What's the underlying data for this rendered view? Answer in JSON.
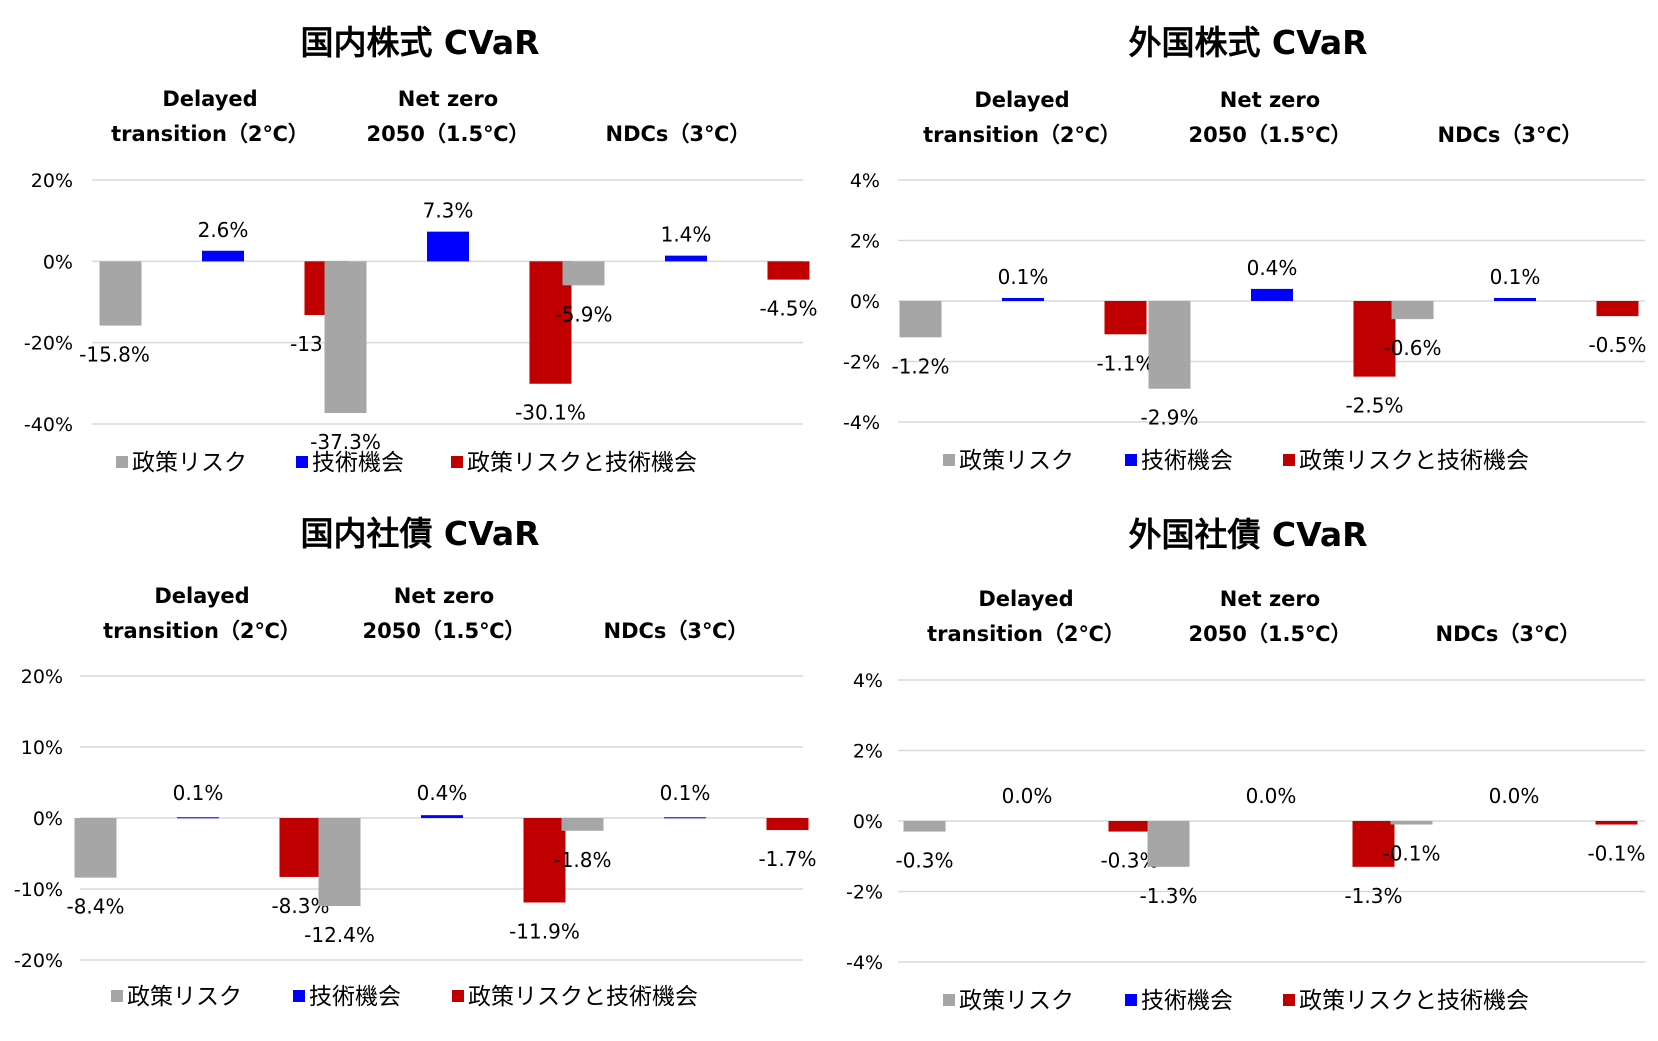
{
  "chart_data": [
    {
      "type": "bar",
      "title": "国内株式 CVaR",
      "categories": [
        [
          "Delayed",
          "transition（2℃）"
        ],
        [
          "Net zero",
          "2050（1.5℃）"
        ],
        [
          "NDCs（3℃）"
        ]
      ],
      "series": [
        {
          "name": "政策リスク",
          "color": "#a6a6a6",
          "values": [
            -15.8,
            -37.3,
            -5.9
          ],
          "labels": [
            "-15.8%",
            "-37.3%",
            "-5.9%"
          ]
        },
        {
          "name": "技術機会",
          "color": "#0000ff",
          "values": [
            2.6,
            7.3,
            1.4
          ],
          "labels": [
            "2.6%",
            "7.3%",
            "1.4%"
          ]
        },
        {
          "name": "政策リスクと技術機会",
          "color": "#c00000",
          "values": [
            -13.2,
            -30.1,
            -4.5
          ],
          "labels": [
            "-13.2%",
            "-30.1%",
            "-4.5%"
          ]
        }
      ],
      "ylim": [
        -40,
        20
      ],
      "yticks": [
        20,
        0,
        -20,
        -40
      ],
      "ytick_labels": [
        "20%",
        "0%",
        "-20%",
        "-40%"
      ],
      "legend_position": "bottom",
      "grid": true
    },
    {
      "type": "bar",
      "title": "外国株式 CVaR",
      "categories": [
        [
          "Delayed",
          "transition（2℃）"
        ],
        [
          "Net zero",
          "2050（1.5℃）"
        ],
        [
          "NDCs（3℃）"
        ]
      ],
      "series": [
        {
          "name": "政策リスク",
          "color": "#a6a6a6",
          "values": [
            -1.2,
            -2.9,
            -0.6
          ],
          "labels": [
            "-1.2%",
            "-2.9%",
            "-0.6%"
          ]
        },
        {
          "name": "技術機会",
          "color": "#0000ff",
          "values": [
            0.1,
            0.4,
            0.1
          ],
          "labels": [
            "0.1%",
            "0.4%",
            "0.1%"
          ]
        },
        {
          "name": "政策リスクと技術機会",
          "color": "#c00000",
          "values": [
            -1.1,
            -2.5,
            -0.5
          ],
          "labels": [
            "-1.1%",
            "-2.5%",
            "-0.5%"
          ]
        }
      ],
      "ylim": [
        -4,
        4
      ],
      "yticks": [
        4,
        2,
        0,
        -2,
        -4
      ],
      "ytick_labels": [
        "4%",
        "2%",
        "0%",
        "-2%",
        "-4%"
      ],
      "legend_position": "bottom",
      "grid": true
    },
    {
      "type": "bar",
      "title": "国内社債 CVaR",
      "categories": [
        [
          "Delayed",
          "transition（2℃）"
        ],
        [
          "Net zero",
          "2050（1.5℃）"
        ],
        [
          "NDCs（3℃）"
        ]
      ],
      "series": [
        {
          "name": "政策リスク",
          "color": "#a6a6a6",
          "values": [
            -8.4,
            -12.4,
            -1.8
          ],
          "labels": [
            "-8.4%",
            "-12.4%",
            "-1.8%"
          ]
        },
        {
          "name": "技術機会",
          "color": "#0000ff",
          "values": [
            0.1,
            0.4,
            0.1
          ],
          "labels": [
            "0.1%",
            "0.4%",
            "0.1%"
          ]
        },
        {
          "name": "政策リスクと技術機会",
          "color": "#c00000",
          "values": [
            -8.3,
            -11.9,
            -1.7
          ],
          "labels": [
            "-8.3%",
            "-11.9%",
            "-1.7%"
          ]
        }
      ],
      "ylim": [
        -20,
        20
      ],
      "yticks": [
        20,
        10,
        0,
        -10,
        -20
      ],
      "ytick_labels": [
        "20%",
        "10%",
        "0%",
        "-10%",
        "-20%"
      ],
      "legend_position": "bottom",
      "grid": true
    },
    {
      "type": "bar",
      "title": "外国社債 CVaR",
      "categories": [
        [
          "Delayed",
          "transition（2℃）"
        ],
        [
          "Net zero",
          "2050（1.5℃）"
        ],
        [
          "NDCs（3℃）"
        ]
      ],
      "series": [
        {
          "name": "政策リスク",
          "color": "#a6a6a6",
          "values": [
            -0.3,
            -1.3,
            -0.1
          ],
          "labels": [
            "-0.3%",
            "-1.3%",
            "-0.1%"
          ]
        },
        {
          "name": "技術機会",
          "color": "#0000ff",
          "values": [
            0.0,
            0.0,
            0.0
          ],
          "labels": [
            "0.0%",
            "0.0%",
            "0.0%"
          ]
        },
        {
          "name": "政策リスクと技術機会",
          "color": "#c00000",
          "values": [
            -0.3,
            -1.3,
            -0.1
          ],
          "labels": [
            "-0.3%",
            "-1.3%",
            "-0.1%"
          ]
        }
      ],
      "ylim": [
        -4,
        4
      ],
      "yticks": [
        4,
        2,
        0,
        -2,
        -4
      ],
      "ytick_labels": [
        "4%",
        "2%",
        "0%",
        "-2%",
        "-4%"
      ],
      "legend_position": "bottom",
      "grid": true
    }
  ]
}
